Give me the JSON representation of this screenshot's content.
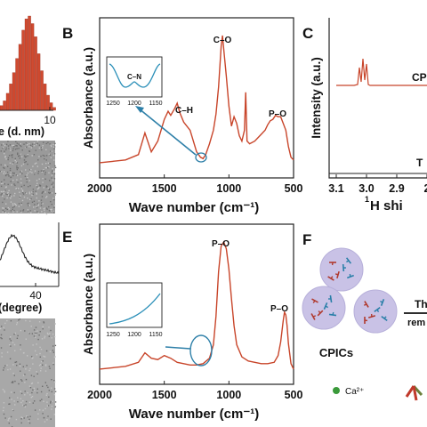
{
  "colors": {
    "spectrum": "#c8452a",
    "inset_curve": "#2a8fb8",
    "arrow": "#2d7fa8",
    "hist": "#d04a30",
    "micrograph": "#9a9a9a",
    "sphere": "#c9c2e6",
    "ca": "#3a9a3a"
  },
  "panel_A": {
    "hist_tick": "10",
    "hist_xlabel_fragment": "e (d. nm)",
    "hist_values": [
      0.05,
      0.1,
      0.18,
      0.28,
      0.4,
      0.55,
      0.7,
      0.85,
      0.97,
      1.0,
      0.92,
      0.78,
      0.6,
      0.42,
      0.28,
      0.16,
      0.08,
      0.03
    ]
  },
  "panel_D": {
    "xrd_tick": "40",
    "xrd_xlabel_fragment": "(degree)"
  },
  "panel_B": {
    "letter": "B",
    "ylabel": "Absorbance (a.u.)",
    "xlabel": "Wave number (cm⁻¹)",
    "xticks": [
      "2000",
      "1500",
      "1000",
      "500"
    ],
    "peak_labels": [
      "C–O",
      "C–H",
      "P–O"
    ],
    "inset": {
      "label": "C–N",
      "ticks": [
        "1250",
        "1200",
        "1150"
      ]
    }
  },
  "panel_E": {
    "letter": "E",
    "ylabel": "Absorbance (a.u.)",
    "xlabel": "Wave number (cm⁻¹)",
    "xticks": [
      "2000",
      "1500",
      "1000",
      "500"
    ],
    "peak_labels": [
      "P–O",
      "P–O"
    ],
    "inset": {
      "ticks": [
        "1250",
        "1200",
        "1150"
      ]
    }
  },
  "panel_C": {
    "letter": "C",
    "ylabel": "Intensity (a.u.)",
    "xlabel_fragment": "H shi",
    "xlabel_sup": "1",
    "xticks": [
      "3.1",
      "3.0",
      "2.9",
      "2"
    ],
    "trace_labels": [
      "CP",
      "T"
    ]
  },
  "panel_F": {
    "letter": "F",
    "group_label": "CPICs",
    "legend_ca": "Ca²⁺",
    "arrow_label_top": "Th",
    "arrow_label_bottom": "rem"
  },
  "chart_data": [
    {
      "type": "line",
      "panel": "B",
      "xlabel": "Wave number (cm⁻¹)",
      "ylabel": "Absorbance (a.u.)",
      "xlim": [
        2000,
        500
      ],
      "x": [
        2000,
        1900,
        1800,
        1700,
        1650,
        1600,
        1550,
        1500,
        1470,
        1450,
        1420,
        1400,
        1380,
        1350,
        1300,
        1250,
        1220,
        1200,
        1180,
        1150,
        1120,
        1100,
        1080,
        1060,
        1050,
        1040,
        1020,
        1000,
        980,
        960,
        940,
        920,
        900,
        880,
        870,
        860,
        840,
        800,
        760,
        720,
        700,
        680,
        660,
        640,
        620,
        600,
        580,
        560,
        540,
        520,
        500
      ],
      "y": [
        0.06,
        0.07,
        0.08,
        0.12,
        0.28,
        0.14,
        0.22,
        0.38,
        0.44,
        0.41,
        0.46,
        0.5,
        0.43,
        0.36,
        0.3,
        0.14,
        0.1,
        0.09,
        0.12,
        0.2,
        0.3,
        0.42,
        0.62,
        0.92,
        1.0,
        0.9,
        0.7,
        0.48,
        0.33,
        0.4,
        0.35,
        0.26,
        0.22,
        0.3,
        0.58,
        0.22,
        0.2,
        0.22,
        0.26,
        0.3,
        0.34,
        0.37,
        0.38,
        0.41,
        0.4,
        0.4,
        0.35,
        0.3,
        0.18,
        0.1,
        0.08
      ],
      "annotations": [
        "C–O",
        "C–H",
        "P–O",
        "C–N"
      ]
    },
    {
      "type": "line",
      "panel": "E",
      "xlabel": "Wave number (cm⁻¹)",
      "ylabel": "Absorbance (a.u.)",
      "xlim": [
        2000,
        500
      ],
      "x": [
        2000,
        1900,
        1800,
        1700,
        1650,
        1600,
        1550,
        1500,
        1450,
        1400,
        1350,
        1300,
        1250,
        1200,
        1150,
        1120,
        1100,
        1080,
        1060,
        1040,
        1020,
        1000,
        980,
        960,
        940,
        900,
        850,
        800,
        750,
        700,
        650,
        620,
        600,
        580,
        570,
        560,
        550,
        540,
        520,
        500
      ],
      "y": [
        0.06,
        0.07,
        0.08,
        0.11,
        0.18,
        0.14,
        0.13,
        0.16,
        0.14,
        0.11,
        0.1,
        0.09,
        0.09,
        0.1,
        0.14,
        0.24,
        0.45,
        0.78,
        0.97,
        1.0,
        0.95,
        0.8,
        0.58,
        0.38,
        0.24,
        0.15,
        0.12,
        0.11,
        0.1,
        0.1,
        0.11,
        0.16,
        0.26,
        0.42,
        0.48,
        0.46,
        0.38,
        0.25,
        0.1,
        0.06
      ],
      "annotations": [
        "P–O",
        "P–O"
      ]
    }
  ]
}
